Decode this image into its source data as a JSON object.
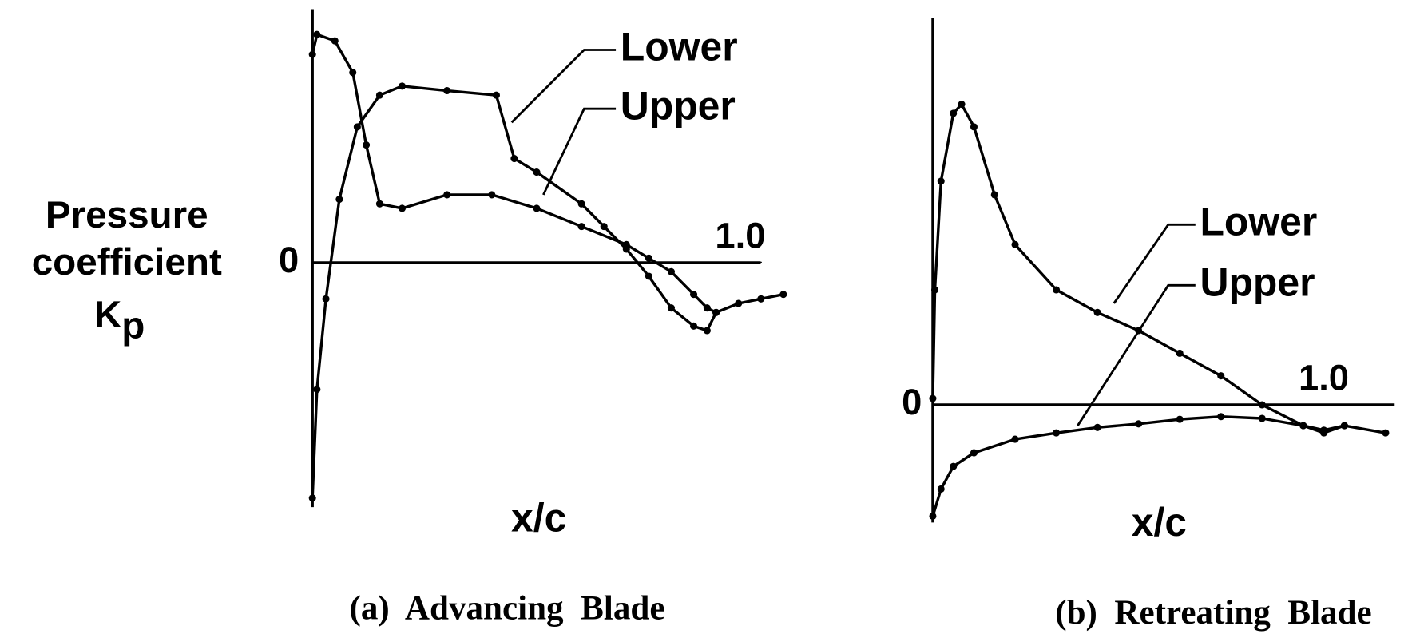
{
  "chart_data": [
    {
      "type": "line",
      "caption": "(a)  Advancing  Blade",
      "ylabel": {
        "lines": [
          "Pressure",
          "coefficient"
        ],
        "symbol": "K",
        "subscript": "p"
      },
      "xlabel": "x/c",
      "xlim": [
        0,
        1.05
      ],
      "ylim": [
        -2.7,
        2.6
      ],
      "xticks": [
        {
          "value": 1.0,
          "label": "1.0"
        }
      ],
      "yticks": [
        0
      ],
      "series": [
        {
          "name": "Lower",
          "color": "#000000",
          "x": [
            0,
            0.01,
            0.03,
            0.06,
            0.1,
            0.15,
            0.2,
            0.3,
            0.41,
            0.45,
            0.5,
            0.6,
            0.65,
            0.7,
            0.75,
            0.8,
            0.85,
            0.88,
            0.9,
            0.95,
            1.0,
            1.05
          ],
          "values": [
            -2.6,
            -1.4,
            -0.4,
            0.7,
            1.5,
            1.85,
            1.95,
            1.9,
            1.85,
            1.15,
            1.0,
            0.65,
            0.4,
            0.15,
            -0.15,
            -0.5,
            -0.7,
            -0.75,
            -0.55,
            -0.45,
            -0.4,
            -0.35
          ]
        },
        {
          "name": "Upper",
          "color": "#000000",
          "x": [
            0,
            0.01,
            0.05,
            0.09,
            0.12,
            0.15,
            0.2,
            0.3,
            0.4,
            0.5,
            0.6,
            0.7,
            0.75,
            0.8,
            0.85,
            0.88,
            0.9
          ],
          "values": [
            2.3,
            2.52,
            2.45,
            2.1,
            1.3,
            0.65,
            0.6,
            0.75,
            0.75,
            0.6,
            0.4,
            0.2,
            0.05,
            -0.1,
            -0.35,
            -0.5,
            -0.55
          ]
        }
      ]
    },
    {
      "type": "line",
      "caption": "(b)  Retreating  Blade",
      "xlabel": "x/c",
      "xlim": [
        0,
        1.1
      ],
      "ylim": [
        -1.3,
        4.3
      ],
      "xticks": [
        {
          "value": 1.0,
          "label": "1.0"
        }
      ],
      "yticks": [
        0
      ],
      "series": [
        {
          "name": "Lower",
          "color": "#000000",
          "x": [
            0,
            0.005,
            0.02,
            0.05,
            0.07,
            0.1,
            0.15,
            0.2,
            0.3,
            0.4,
            0.5,
            0.6,
            0.7,
            0.8,
            0.9,
            0.95,
            1.0,
            1.1
          ],
          "values": [
            0.07,
            1.27,
            2.47,
            3.22,
            3.32,
            3.07,
            2.32,
            1.77,
            1.27,
            1.02,
            0.82,
            0.57,
            0.32,
            0,
            -0.23,
            -0.28,
            -0.23,
            -0.31
          ]
        },
        {
          "name": "Upper",
          "color": "#000000",
          "x": [
            0,
            0.02,
            0.05,
            0.1,
            0.2,
            0.3,
            0.4,
            0.5,
            0.6,
            0.7,
            0.8,
            0.9,
            0.95,
            1.0
          ],
          "values": [
            -1.23,
            -0.93,
            -0.68,
            -0.53,
            -0.38,
            -0.31,
            -0.25,
            -0.21,
            -0.16,
            -0.13,
            -0.15,
            -0.23,
            -0.31,
            -0.23
          ]
        }
      ]
    }
  ]
}
